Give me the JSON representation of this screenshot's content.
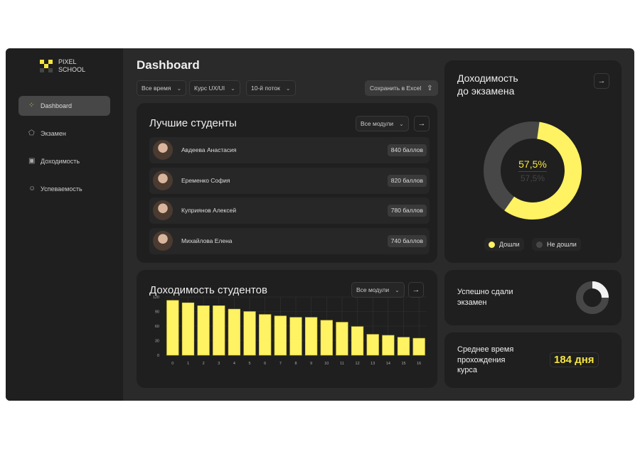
{
  "brand": {
    "line1": "PIXEL",
    "line2": "SCHOOL"
  },
  "sidebar": {
    "items": [
      {
        "label": "Dashboard",
        "icon": "grid-icon",
        "active": true
      },
      {
        "label": "Экзамен",
        "icon": "pentagon-icon"
      },
      {
        "label": "Доходимость",
        "icon": "chart-icon"
      },
      {
        "label": "Успеваемость",
        "icon": "smile-icon"
      }
    ]
  },
  "header": {
    "title": "Dashboard",
    "filters": [
      "Все время",
      "Курс UX/UI",
      "10-й поток"
    ],
    "export_label": "Сохранить в Excel"
  },
  "students": {
    "title": "Лучшие студенты",
    "filter": "Все модули",
    "rows": [
      {
        "name": "Авдеева Анастасия",
        "score": "840 баллов"
      },
      {
        "name": "Еременко София",
        "score": "820 баллов"
      },
      {
        "name": "Куприянов Алексей",
        "score": "780 баллов"
      },
      {
        "name": "Михайлова Елена",
        "score": "740 баллов"
      }
    ]
  },
  "completion": {
    "title_line1": "Доходимость",
    "title_line2": "до экзамена",
    "value": "57,5%",
    "sub_value": "57,5%",
    "fraction": 0.575,
    "legend": [
      "Дошли",
      "Не дошли"
    ]
  },
  "passed": {
    "title_line1": "Успешно сдали",
    "title_line2": "экзамен",
    "fraction": 0.25
  },
  "avg_time": {
    "line1": "Среднее время",
    "line2": "прохождения",
    "line3": "курса",
    "value": "184 дня"
  },
  "colors": {
    "accent": "#fff263",
    "muted": "#474747"
  },
  "chart_data": {
    "type": "bar",
    "title": "Доходимость студентов",
    "filter": "Все модули",
    "categories": [
      "0",
      "1",
      "2",
      "3",
      "4",
      "5",
      "6",
      "7",
      "8",
      "9",
      "10",
      "11",
      "12",
      "13",
      "14",
      "15",
      "16"
    ],
    "values": [
      113,
      108,
      102,
      102,
      95,
      90,
      84,
      81,
      78,
      78,
      72,
      68,
      59,
      43,
      41,
      37,
      35
    ],
    "yticks": [
      "0",
      "30",
      "60",
      "90",
      "120"
    ],
    "ylim": [
      0,
      120
    ],
    "grid": true
  }
}
